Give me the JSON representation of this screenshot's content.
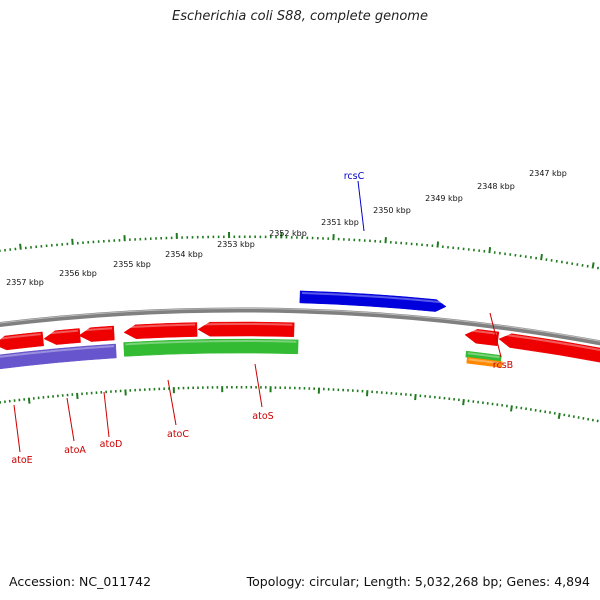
{
  "title": "Escherichia coli S88, complete genome",
  "footer": {
    "accession": "Accession: NC_011742",
    "summary": "Topology: circular; Length: 5,032,268 bp; Genes: 4,894"
  },
  "colors": {
    "backbone": "#808080",
    "ticks": "#1f7a1f",
    "red": "#ee0000",
    "green": "#33bb33",
    "blue": "#0000dd",
    "purple": "#6655cc",
    "orange": "#ff8800",
    "label_red": "#cc0000",
    "label_blue": "#0000cc"
  },
  "scale": {
    "unit": "kbp",
    "labels": [
      "2347 kbp",
      "2348 kbp",
      "2349 kbp",
      "2350 kbp",
      "2351 kbp",
      "2352 kbp",
      "2353 kbp",
      "2354 kbp",
      "2355 kbp",
      "2356 kbp",
      "2357 kbp"
    ]
  },
  "gene_labels": [
    "rcsC",
    "rcsB",
    "atoS",
    "atoC",
    "atoD",
    "atoA",
    "atoE"
  ]
}
